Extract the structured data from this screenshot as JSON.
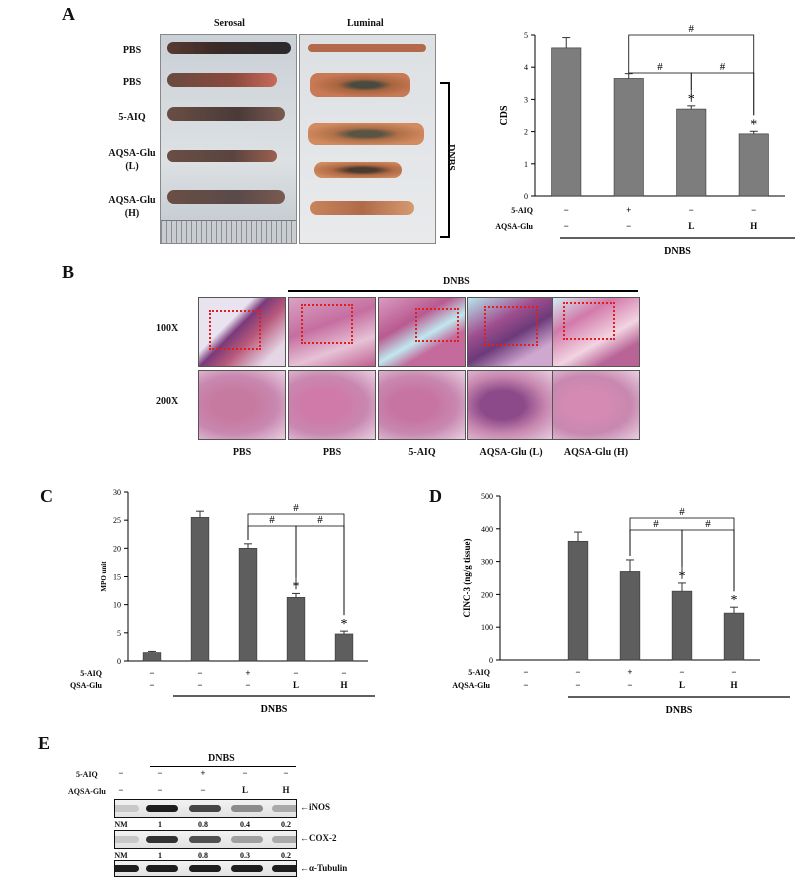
{
  "panels": {
    "A": "A",
    "B": "B",
    "C": "C",
    "D": "D",
    "E": "E"
  },
  "panelA": {
    "col_serosal": "Serosal",
    "col_luminal": "Luminal",
    "rows": [
      "PBS",
      "PBS",
      "5-AIQ",
      "AQSA-Glu\n(L)",
      "AQSA-Glu\n(H)"
    ],
    "bracket_label": "DNBS"
  },
  "treatment_table": {
    "row1_label": "5-AIQ",
    "row2_label": "AQSA-Glu",
    "row1": [
      "−",
      "+",
      "−",
      "−"
    ],
    "row2": [
      "−",
      "−",
      "L",
      "H"
    ],
    "group_label": "DNBS"
  },
  "panelB": {
    "group_label": "DNBS",
    "row_labels": [
      "100X",
      "200X"
    ],
    "col_labels": [
      "PBS",
      "PBS",
      "5-AIQ",
      "AQSA-Glu (L)",
      "AQSA-Glu (H)"
    ]
  },
  "chart_data": [
    {
      "panel": "A",
      "type": "bar",
      "ylabel": "CDS",
      "ylim": [
        0,
        5
      ],
      "yticks": [
        0,
        1,
        2,
        3,
        4,
        5
      ],
      "values": [
        4.6,
        3.65,
        2.7,
        1.93
      ],
      "errors": [
        0.32,
        0.15,
        0.1,
        0.08
      ],
      "sig_star": [
        false,
        false,
        true,
        true
      ],
      "comparisons": [
        [
          1,
          2,
          "#"
        ],
        [
          1,
          3,
          "#"
        ],
        [
          2,
          3,
          "#"
        ]
      ],
      "row1": [
        "−",
        "+",
        "−",
        "−"
      ],
      "row2": [
        "−",
        "−",
        "L",
        "H"
      ],
      "group_label": "DNBS"
    },
    {
      "panel": "C",
      "type": "bar",
      "ylabel": "MPO unit",
      "ylim": [
        0,
        30
      ],
      "yticks": [
        0,
        5,
        10,
        15,
        20,
        25,
        30
      ],
      "values": [
        1.5,
        25.5,
        20,
        11.3,
        4.8
      ],
      "errors": [
        0.2,
        1.1,
        0.8,
        0.7,
        0.5
      ],
      "sig_star": [
        false,
        false,
        false,
        true,
        true
      ],
      "comparisons": [
        [
          2,
          3,
          "#"
        ],
        [
          2,
          4,
          "#"
        ],
        [
          3,
          4,
          "#"
        ]
      ],
      "row1": [
        "−",
        "−",
        "+",
        "−",
        "−"
      ],
      "row2": [
        "−",
        "−",
        "−",
        "L",
        "H"
      ],
      "group_label": "DNBS"
    },
    {
      "panel": "D",
      "type": "bar",
      "ylabel": "CINC-3 (ng/g tissue)",
      "ylim": [
        0,
        500
      ],
      "yticks": [
        0,
        100,
        200,
        300,
        400,
        500
      ],
      "values": [
        0,
        362,
        270,
        210,
        143
      ],
      "errors": [
        0,
        28,
        35,
        25,
        18
      ],
      "sig_star": [
        false,
        false,
        false,
        true,
        true
      ],
      "comparisons": [
        [
          2,
          3,
          "#"
        ],
        [
          2,
          4,
          "#"
        ],
        [
          3,
          4,
          "#"
        ]
      ],
      "row1": [
        "−",
        "−",
        "+",
        "−",
        "−"
      ],
      "row2": [
        "−",
        "−",
        "−",
        "L",
        "H"
      ],
      "group_label": "DNBS"
    }
  ],
  "panelE": {
    "group_label": "DNBS",
    "row1_label": "5-AIQ",
    "row2_label": "AQSA-Glu",
    "row1": [
      "−",
      "−",
      "+",
      "−",
      "−"
    ],
    "row2": [
      "−",
      "−",
      "−",
      "L",
      "H"
    ],
    "bands": [
      {
        "name": "iNOS",
        "label": "←iNOS",
        "quant": [
          "NM",
          "1",
          "0.8",
          "0.4",
          "0.2"
        ],
        "intensity": [
          0.15,
          1,
          0.8,
          0.45,
          0.3
        ]
      },
      {
        "name": "COX-2",
        "label": "←COX-2",
        "quant": [
          "NM",
          "1",
          "0.8",
          "0.3",
          "0.2"
        ],
        "intensity": [
          0.15,
          0.9,
          0.75,
          0.35,
          0.3
        ]
      },
      {
        "name": "a-Tubulin",
        "label": "←α-Tubulin",
        "quant": [],
        "intensity": [
          1,
          1,
          1,
          1,
          1
        ]
      }
    ]
  }
}
